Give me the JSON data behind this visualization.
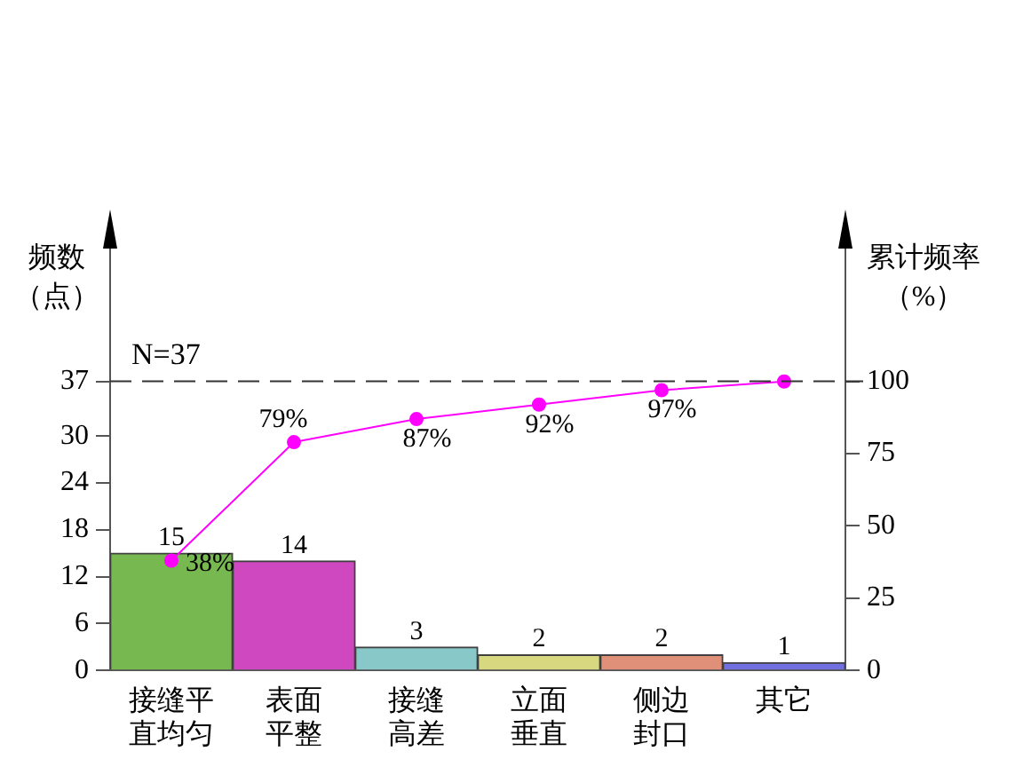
{
  "chart_data": {
    "type": "bar",
    "ylabel": "频数（点）",
    "y2label": "累计频率（%）",
    "categories": [
      "接缝平直均匀",
      "表面平整",
      "接缝高差",
      "立面垂直",
      "侧边封口",
      "其它"
    ],
    "series": [
      {
        "colors": [
          "#78b850",
          "#d048c0",
          "#88c8c8",
          "#d8d880",
          "#e09078",
          "#7070e0"
        ],
        "values": [
          15,
          14,
          3,
          2,
          2,
          1
        ],
        "value_labels": [
          "15",
          "14",
          "3",
          "2",
          "2",
          "1"
        ]
      },
      {
        "type": "line",
        "axis": "y2",
        "color": "#ff00ff",
        "values": [
          38,
          79,
          87,
          92,
          97,
          100
        ],
        "value_labels": [
          "38%",
          "79%",
          "87%",
          "92%",
          "97%",
          null
        ]
      }
    ],
    "ylim": [
      0,
      54
    ],
    "yticks": [
      0,
      6,
      12,
      18,
      24,
      30,
      37
    ],
    "y2lim": [
      0,
      146
    ],
    "y2ticks": [
      0,
      25,
      50,
      75,
      100
    ],
    "ref_lines": [
      {
        "axis": "y",
        "value": 37,
        "label": "N=37",
        "line_style": "dashed"
      }
    ],
    "grid": false,
    "legend": false,
    "marker": "circle"
  }
}
